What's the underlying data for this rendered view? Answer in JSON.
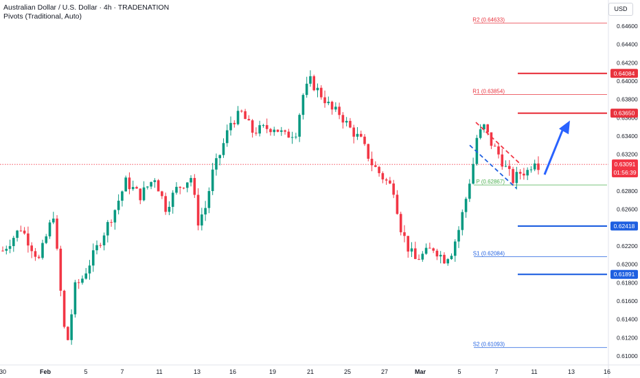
{
  "header": {
    "title": "Australian Dollar / U.S. Dollar · 4h · TRADENATION",
    "indicator": "Pivots (Traditional, Auto)",
    "currency": "USD"
  },
  "current_price": {
    "value": "0.63091",
    "countdown": "01:56:39",
    "price": 0.63091
  },
  "colors": {
    "up": "#089981",
    "down": "#f23645",
    "resistance": "#e8323d",
    "support": "#1e5fe0",
    "pivot": "#4caf50",
    "arrow": "#2962ff",
    "axis_text": "#131722"
  },
  "chart_data": {
    "type": "candlestick",
    "ylim": [
      0.6095,
      0.6472
    ],
    "y_ticks": [
      "0.64600",
      "0.64400",
      "0.64200",
      "0.64000",
      "0.63800",
      "0.63600",
      "0.63400",
      "0.63200",
      "0.63000",
      "0.62800",
      "0.62600",
      "0.62400",
      "0.62200",
      "0.62000",
      "0.61800",
      "0.61600",
      "0.61400",
      "0.61200",
      "0.61000"
    ],
    "x_labels": [
      "30",
      "Feb",
      "5",
      "7",
      "11",
      "13",
      "16",
      "19",
      "21",
      "25",
      "27",
      "Mar",
      "5",
      "7",
      "11",
      "13",
      "16"
    ],
    "pivots": [
      {
        "label": "R2 (0.64633)",
        "value": 0.64633,
        "kind": "resistance"
      },
      {
        "label": "R1 (0.63854)",
        "value": 0.63854,
        "kind": "resistance"
      },
      {
        "label": "P (0.62867)",
        "value": 0.62867,
        "kind": "pivot"
      },
      {
        "label": "S1 (0.62084)",
        "value": 0.62084,
        "kind": "support"
      },
      {
        "label": "S2 (0.61093)",
        "value": 0.61093,
        "kind": "support"
      }
    ],
    "levels": [
      {
        "label": "0.64084",
        "value": 0.64084,
        "kind": "resistance"
      },
      {
        "label": "0.63650",
        "value": 0.6365,
        "kind": "resistance"
      },
      {
        "label": "0.62418",
        "value": 0.62418,
        "kind": "support"
      },
      {
        "label": "0.61891",
        "value": 0.61891,
        "kind": "support"
      }
    ],
    "anchors": [
      [
        0,
        0.6215
      ],
      [
        5,
        0.624
      ],
      [
        10,
        0.6205
      ],
      [
        14,
        0.6255
      ],
      [
        16,
        0.617
      ],
      [
        17,
        0.613
      ],
      [
        18,
        0.6118
      ],
      [
        20,
        0.6175
      ],
      [
        22,
        0.6185
      ],
      [
        26,
        0.6218
      ],
      [
        28,
        0.6235
      ],
      [
        31,
        0.626
      ],
      [
        34,
        0.629
      ],
      [
        38,
        0.6275
      ],
      [
        42,
        0.6295
      ],
      [
        45,
        0.6262
      ],
      [
        48,
        0.6282
      ],
      [
        52,
        0.6295
      ],
      [
        54,
        0.6247
      ],
      [
        56,
        0.6262
      ],
      [
        58,
        0.63
      ],
      [
        60,
        0.632
      ],
      [
        63,
        0.6355
      ],
      [
        66,
        0.6365
      ],
      [
        69,
        0.6345
      ],
      [
        72,
        0.6348
      ],
      [
        75,
        0.635
      ],
      [
        78,
        0.634
      ],
      [
        81,
        0.6345
      ],
      [
        83,
        0.6385
      ],
      [
        85,
        0.64
      ],
      [
        87,
        0.639
      ],
      [
        89,
        0.638
      ],
      [
        91,
        0.6368
      ],
      [
        93,
        0.6365
      ],
      [
        96,
        0.6348
      ],
      [
        99,
        0.6335
      ],
      [
        102,
        0.631
      ],
      [
        105,
        0.6295
      ],
      [
        108,
        0.6282
      ],
      [
        110,
        0.624
      ],
      [
        112,
        0.6218
      ],
      [
        114,
        0.6205
      ],
      [
        116,
        0.621
      ],
      [
        119,
        0.6218
      ],
      [
        122,
        0.6206
      ],
      [
        124,
        0.6214
      ],
      [
        126,
        0.6238
      ],
      [
        128,
        0.6272
      ],
      [
        130,
        0.631
      ],
      [
        131,
        0.6338
      ],
      [
        133,
        0.635
      ],
      [
        135,
        0.6332
      ],
      [
        137,
        0.632
      ],
      [
        139,
        0.6305
      ],
      [
        141,
        0.6292
      ],
      [
        143,
        0.63
      ],
      [
        145,
        0.6302
      ],
      [
        147,
        0.6315
      ],
      [
        148,
        0.6309
      ]
    ],
    "forecast_arrow": {
      "from": [
        0.6298
      ],
      "to": [
        0.6352
      ]
    }
  }
}
